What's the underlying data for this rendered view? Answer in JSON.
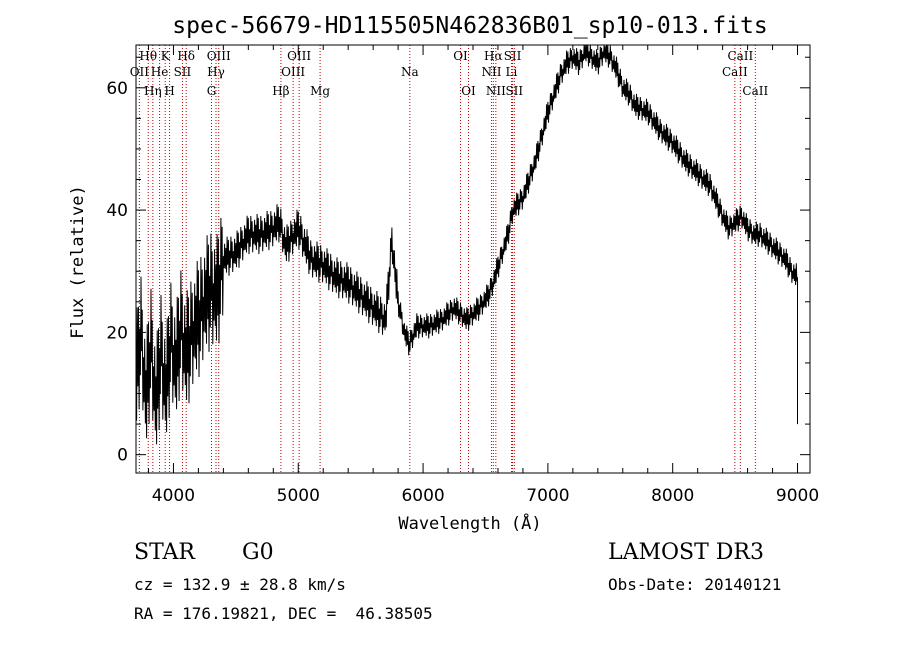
{
  "chart_data": {
    "type": "line",
    "title": "spec-56679-HD115505N462836B01_sp10-013.fits",
    "xlabel": "Wavelength (Å)",
    "ylabel": "Flux (relative)",
    "xlim": [
      3700,
      9100
    ],
    "ylim": [
      -3,
      67
    ],
    "xticks": [
      4000,
      5000,
      6000,
      7000,
      8000,
      9000
    ],
    "xtick_labels": [
      "4000",
      "5000",
      "6000",
      "7000",
      "8000",
      "9000"
    ],
    "yticks": [
      0,
      20,
      40,
      60
    ],
    "ytick_labels": [
      "0",
      "20",
      "40",
      "60"
    ],
    "series": [
      {
        "name": "flux",
        "x": [
          3700,
          3740,
          3780,
          3820,
          3860,
          3900,
          3940,
          3980,
          4020,
          4060,
          4100,
          4150,
          4200,
          4250,
          4300,
          4350,
          4400,
          4500,
          4600,
          4700,
          4800,
          4850,
          4900,
          5000,
          5100,
          5200,
          5300,
          5400,
          5500,
          5600,
          5700,
          5750,
          5800,
          5850,
          5890,
          5950,
          6050,
          6150,
          6250,
          6350,
          6450,
          6520,
          6560,
          6620,
          6680,
          6720,
          6760,
          6800,
          6850,
          6900,
          6950,
          7000,
          7050,
          7100,
          7150,
          7200,
          7250,
          7300,
          7350,
          7400,
          7450,
          7500,
          7550,
          7600,
          7650,
          7700,
          7800,
          7900,
          8000,
          8100,
          8200,
          8300,
          8400,
          8450,
          8500,
          8550,
          8600,
          8650,
          8700,
          8750,
          8800,
          8850,
          8900,
          8950,
          9000
        ],
        "y": [
          12,
          20,
          9,
          18,
          8,
          17,
          10,
          19,
          14,
          21,
          16,
          20,
          22,
          25,
          27,
          26,
          32,
          33,
          36,
          36,
          37,
          38,
          34,
          37,
          32,
          31,
          29,
          28,
          26,
          24,
          22,
          35,
          25,
          20,
          18,
          21,
          21,
          22,
          24,
          22,
          24,
          26,
          28,
          32,
          36,
          40,
          41,
          42,
          45,
          48,
          52,
          56,
          59,
          62,
          64,
          65,
          64,
          66,
          65,
          64,
          66,
          65,
          63,
          60,
          59,
          57,
          56,
          53,
          51,
          48,
          46,
          44,
          39,
          37,
          38,
          39,
          37,
          36,
          36,
          35,
          34,
          33,
          32,
          30,
          29
        ]
      }
    ],
    "lines": [
      {
        "label": "Hθ",
        "w": 3798,
        "row": 0
      },
      {
        "label": "OII",
        "w": 3727,
        "row": 1
      },
      {
        "label": "Hη",
        "w": 3835,
        "row": 2
      },
      {
        "label": "He",
        "w": 3889,
        "row": 1
      },
      {
        "label": "K",
        "w": 3934,
        "row": 0
      },
      {
        "label": "H",
        "w": 3969,
        "row": 2
      },
      {
        "label": "SII",
        "w": 4072,
        "row": 1
      },
      {
        "label": "Hδ",
        "w": 4102,
        "row": 0
      },
      {
        "label": "Hγ",
        "w": 4341,
        "row": 1
      },
      {
        "label": "G",
        "w": 4305,
        "row": 2
      },
      {
        "label": "OIII",
        "w": 4363,
        "row": 0
      },
      {
        "label": "Hβ",
        "w": 4861,
        "row": 2
      },
      {
        "label": "OIII",
        "w": 4959,
        "row": 1
      },
      {
        "label": "OIII",
        "w": 5007,
        "row": 0
      },
      {
        "label": "Mg",
        "w": 5175,
        "row": 2
      },
      {
        "label": "Na",
        "w": 5894,
        "row": 1
      },
      {
        "label": "OI",
        "w": 6300,
        "row": 0
      },
      {
        "label": "OI",
        "w": 6364,
        "row": 2
      },
      {
        "label": "NII",
        "w": 6548,
        "row": 1
      },
      {
        "label": "Hα",
        "w": 6563,
        "row": 0
      },
      {
        "label": "NII",
        "w": 6583,
        "row": 2
      },
      {
        "label": "Li",
        "w": 6708,
        "row": 1
      },
      {
        "label": "SII",
        "w": 6717,
        "row": 0
      },
      {
        "label": "SII",
        "w": 6731,
        "row": 2
      },
      {
        "label": "CaII",
        "w": 8498,
        "row": 1
      },
      {
        "label": "CaII",
        "w": 8542,
        "row": 0
      },
      {
        "label": "CaII",
        "w": 8662,
        "row": 2
      }
    ]
  },
  "info": {
    "obj_class": "STAR",
    "subclass": "G0",
    "survey": "LAMOST DR3",
    "cz": "cz = 132.9 ± 28.8 km/s",
    "obsdate": "Obs-Date: 20140121",
    "radec": "RA = 176.19821, DEC =  46.38505"
  }
}
